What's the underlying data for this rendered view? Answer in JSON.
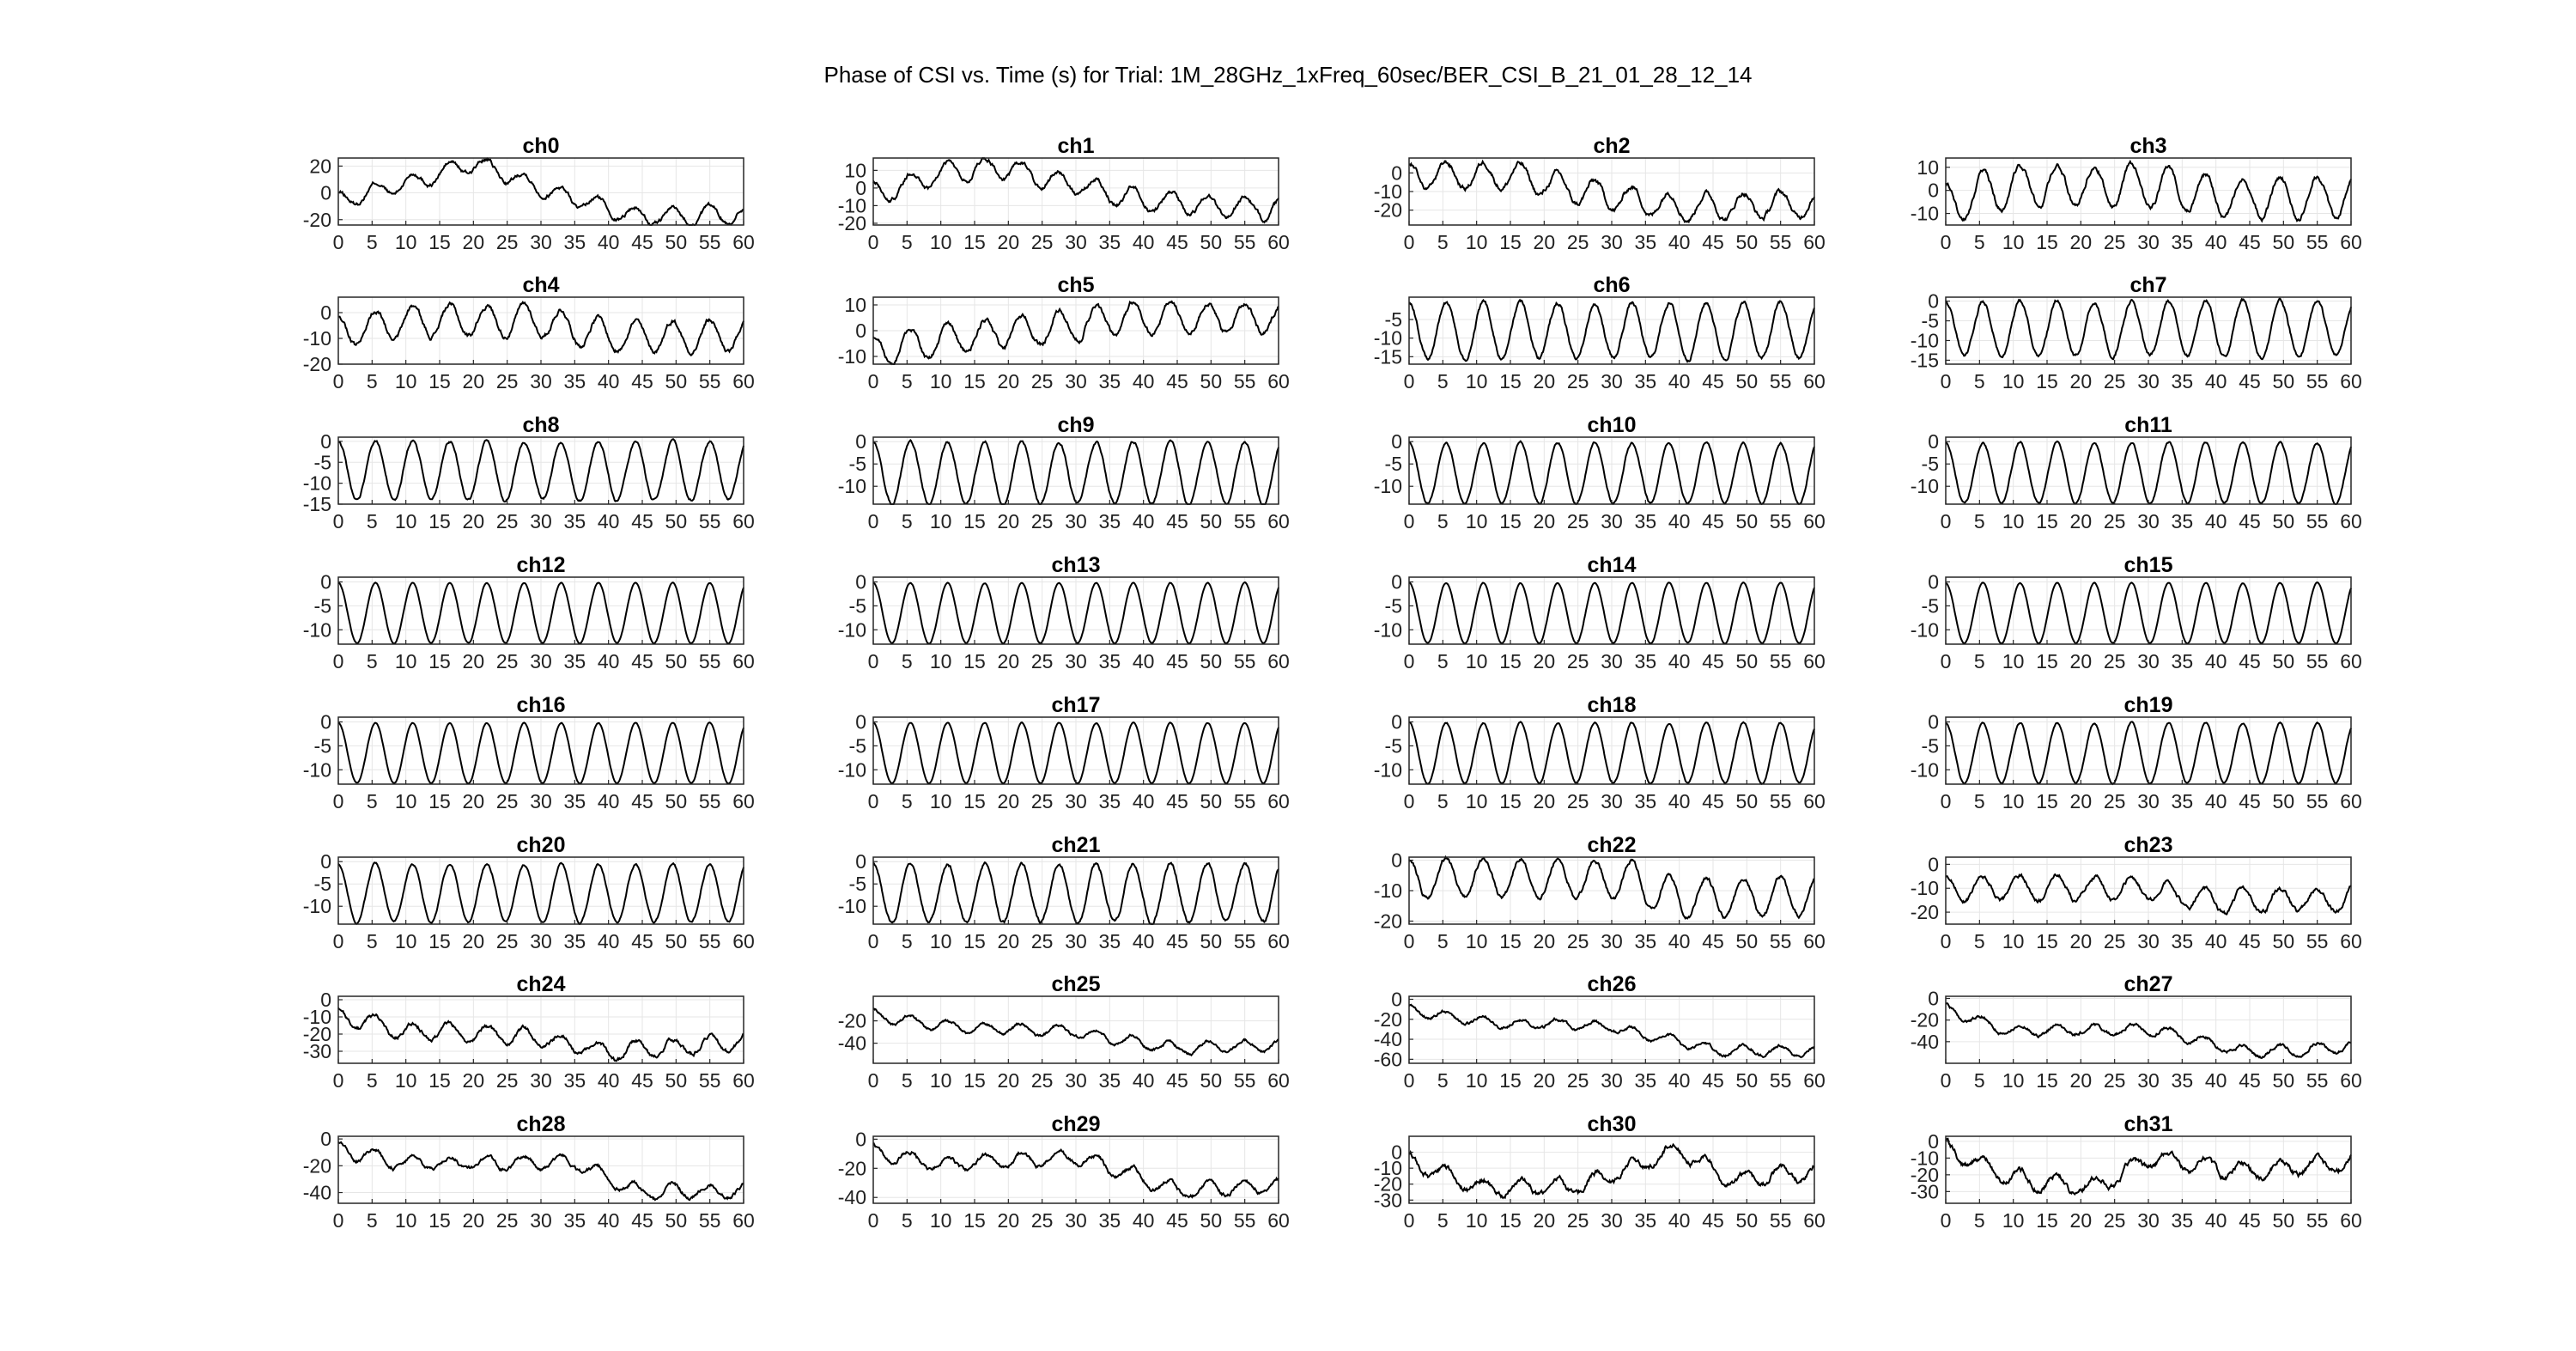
{
  "figure": {
    "title": "Phase of CSI vs. Time (s) for Trial: 1M_28GHz_1xFreq_60sec/BER_CSI_B_21_01_28_12_14"
  },
  "chart_data": {
    "type": "line",
    "layout": "8 rows x 4 columns small multiples",
    "xlim": [
      0,
      60
    ],
    "xticks": [
      0,
      5,
      10,
      15,
      20,
      25,
      30,
      35,
      40,
      45,
      50,
      55,
      60
    ],
    "grid": true,
    "line_color": "#000000",
    "series_model": "each channel oscillates with a period of about 5.5 s between ymin and ymax; a drift term shifts the baseline over time (values estimated from the figure)",
    "subplots": [
      {
        "title": "ch0",
        "ylim": [
          -24,
          26
        ],
        "yticks": [
          20,
          0,
          -20
        ],
        "amplitude": 6,
        "period": 5.5,
        "drift": [
          [
            0,
            -6
          ],
          [
            12,
            10
          ],
          [
            20,
            22
          ],
          [
            27,
            10
          ],
          [
            35,
            -5
          ],
          [
            45,
            -18
          ],
          [
            60,
            -16
          ]
        ],
        "noise": 2.0
      },
      {
        "title": "ch1",
        "ylim": [
          -21,
          17
        ],
        "yticks": [
          10,
          0,
          -10,
          -20
        ],
        "amplitude": 6,
        "period": 5.5,
        "drift": [
          [
            0,
            -4
          ],
          [
            10,
            8
          ],
          [
            18,
            12
          ],
          [
            30,
            2
          ],
          [
            40,
            -8
          ],
          [
            60,
            -12
          ]
        ],
        "noise": 1.6
      },
      {
        "title": "ch2",
        "ylim": [
          -28,
          8
        ],
        "yticks": [
          0,
          -10,
          -20
        ],
        "amplitude": 7,
        "period": 5.5,
        "drift": [
          [
            0,
            -2
          ],
          [
            15,
            -1
          ],
          [
            25,
            -10
          ],
          [
            40,
            -18
          ],
          [
            60,
            -17
          ]
        ],
        "noise": 1.8
      },
      {
        "title": "ch3",
        "ylim": [
          -15,
          14
        ],
        "yticks": [
          10,
          0,
          -10
        ],
        "amplitude": 9,
        "period": 5.5,
        "drift": [
          [
            0,
            -6
          ],
          [
            10,
            2
          ],
          [
            30,
            2
          ],
          [
            40,
            -3
          ],
          [
            60,
            -3
          ]
        ],
        "noise": 1.4
      },
      {
        "title": "ch4",
        "ylim": [
          -20,
          6
        ],
        "yticks": [
          0,
          -10,
          -20
        ],
        "amplitude": 6,
        "period": 5.5,
        "drift": [
          [
            0,
            -8
          ],
          [
            12,
            -3
          ],
          [
            30,
            -3
          ],
          [
            40,
            -9
          ],
          [
            60,
            -9
          ]
        ],
        "noise": 1.2
      },
      {
        "title": "ch5",
        "ylim": [
          -13,
          13
        ],
        "yticks": [
          10,
          0,
          -10
        ],
        "amplitude": 6,
        "period": 5.5,
        "drift": [
          [
            0,
            -8
          ],
          [
            15,
            -2
          ],
          [
            30,
            2
          ],
          [
            38,
            5
          ],
          [
            60,
            5
          ]
        ],
        "noise": 1.2
      },
      {
        "title": "ch6",
        "ylim": [
          -17,
          1
        ],
        "yticks": [
          -5,
          -10,
          -15
        ],
        "amplitude": 7.5,
        "period": 5.5,
        "drift": [
          [
            0,
            -8
          ],
          [
            60,
            -8
          ]
        ],
        "noise": 0.7
      },
      {
        "title": "ch7",
        "ylim": [
          -16,
          1
        ],
        "yticks": [
          0,
          -5,
          -10,
          -15
        ],
        "amplitude": 7,
        "period": 5.5,
        "drift": [
          [
            0,
            -7
          ],
          [
            60,
            -7
          ]
        ],
        "noise": 0.6
      },
      {
        "title": "ch8",
        "ylim": [
          -15,
          1
        ],
        "yticks": [
          0,
          -5,
          -10,
          -15
        ],
        "amplitude": 7,
        "period": 5.5,
        "drift": [
          [
            0,
            -7
          ],
          [
            60,
            -7
          ]
        ],
        "noise": 0.4
      },
      {
        "title": "ch9",
        "ylim": [
          -14,
          1
        ],
        "yticks": [
          0,
          -5,
          -10
        ],
        "amplitude": 7,
        "period": 5.5,
        "drift": [
          [
            0,
            -7
          ],
          [
            60,
            -7
          ]
        ],
        "noise": 0.4
      },
      {
        "title": "ch10",
        "ylim": [
          -14,
          1
        ],
        "yticks": [
          0,
          -5,
          -10
        ],
        "amplitude": 6.8,
        "period": 5.5,
        "drift": [
          [
            0,
            -7
          ],
          [
            60,
            -7
          ]
        ],
        "noise": 0.3
      },
      {
        "title": "ch11",
        "ylim": [
          -14,
          1
        ],
        "yticks": [
          0,
          -5,
          -10
        ],
        "amplitude": 6.8,
        "period": 5.5,
        "drift": [
          [
            0,
            -7
          ],
          [
            60,
            -7
          ]
        ],
        "noise": 0.3
      },
      {
        "title": "ch12",
        "ylim": [
          -13,
          1
        ],
        "yticks": [
          0,
          -5,
          -10
        ],
        "amplitude": 6.3,
        "period": 5.5,
        "drift": [
          [
            0,
            -6.5
          ],
          [
            60,
            -6.5
          ]
        ],
        "noise": 0.1
      },
      {
        "title": "ch13",
        "ylim": [
          -13,
          1
        ],
        "yticks": [
          0,
          -5,
          -10
        ],
        "amplitude": 6.3,
        "period": 5.5,
        "drift": [
          [
            0,
            -6.5
          ],
          [
            60,
            -6.5
          ]
        ],
        "noise": 0.1
      },
      {
        "title": "ch14",
        "ylim": [
          -13,
          1
        ],
        "yticks": [
          0,
          -5,
          -10
        ],
        "amplitude": 6.3,
        "period": 5.5,
        "drift": [
          [
            0,
            -6.5
          ],
          [
            60,
            -6.5
          ]
        ],
        "noise": 0.1
      },
      {
        "title": "ch15",
        "ylim": [
          -13,
          1
        ],
        "yticks": [
          0,
          -5,
          -10
        ],
        "amplitude": 6.3,
        "period": 5.5,
        "drift": [
          [
            0,
            -6.5
          ],
          [
            60,
            -6.5
          ]
        ],
        "noise": 0.1
      },
      {
        "title": "ch16",
        "ylim": [
          -13,
          1
        ],
        "yticks": [
          0,
          -5,
          -10
        ],
        "amplitude": 6.3,
        "period": 5.5,
        "drift": [
          [
            0,
            -6.5
          ],
          [
            60,
            -6.5
          ]
        ],
        "noise": 0.1
      },
      {
        "title": "ch17",
        "ylim": [
          -13,
          1
        ],
        "yticks": [
          0,
          -5,
          -10
        ],
        "amplitude": 6.3,
        "period": 5.5,
        "drift": [
          [
            0,
            -6.5
          ],
          [
            60,
            -6.5
          ]
        ],
        "noise": 0.1
      },
      {
        "title": "ch18",
        "ylim": [
          -13,
          1
        ],
        "yticks": [
          0,
          -5,
          -10
        ],
        "amplitude": 6.3,
        "period": 5.5,
        "drift": [
          [
            0,
            -6.5
          ],
          [
            60,
            -6.5
          ]
        ],
        "noise": 0.2
      },
      {
        "title": "ch19",
        "ylim": [
          -13,
          1
        ],
        "yticks": [
          0,
          -5,
          -10
        ],
        "amplitude": 6.3,
        "period": 5.5,
        "drift": [
          [
            0,
            -6.5
          ],
          [
            60,
            -6.5
          ]
        ],
        "noise": 0.2
      },
      {
        "title": "ch20",
        "ylim": [
          -14,
          1
        ],
        "yticks": [
          0,
          -5,
          -10
        ],
        "amplitude": 6.5,
        "period": 5.5,
        "drift": [
          [
            0,
            -7
          ],
          [
            60,
            -7
          ]
        ],
        "noise": 0.3
      },
      {
        "title": "ch21",
        "ylim": [
          -14,
          1
        ],
        "yticks": [
          0,
          -5,
          -10
        ],
        "amplitude": 6.5,
        "period": 5.5,
        "drift": [
          [
            0,
            -7
          ],
          [
            60,
            -7
          ]
        ],
        "noise": 0.5
      },
      {
        "title": "ch22",
        "ylim": [
          -21,
          1
        ],
        "yticks": [
          0,
          -10,
          -20
        ],
        "amplitude": 6.5,
        "period": 5.5,
        "drift": [
          [
            0,
            -6
          ],
          [
            33,
            -6
          ],
          [
            37,
            -12
          ],
          [
            60,
            -12
          ]
        ],
        "noise": 0.9
      },
      {
        "title": "ch23",
        "ylim": [
          -25,
          3
        ],
        "yticks": [
          0,
          -10,
          -20
        ],
        "amplitude": 5,
        "period": 5.5,
        "drift": [
          [
            0,
            -10
          ],
          [
            30,
            -10
          ],
          [
            40,
            -16
          ],
          [
            60,
            -14
          ]
        ],
        "noise": 1.2
      },
      {
        "title": "ch24",
        "ylim": [
          -37,
          2
        ],
        "yticks": [
          0,
          -10,
          -20,
          -30
        ],
        "amplitude": 5,
        "period": 5.5,
        "drift": [
          [
            0,
            -10
          ],
          [
            10,
            -18
          ],
          [
            30,
            -22
          ],
          [
            40,
            -30
          ],
          [
            60,
            -25
          ]
        ],
        "noise": 1.5
      },
      {
        "title": "ch25",
        "ylim": [
          -58,
          2
        ],
        "yticks": [
          -20,
          -40
        ],
        "amplitude": 5,
        "period": 5.5,
        "drift": [
          [
            0,
            -15
          ],
          [
            10,
            -25
          ],
          [
            30,
            -30
          ],
          [
            45,
            -45
          ],
          [
            60,
            -42
          ]
        ],
        "noise": 1.8
      },
      {
        "title": "ch26",
        "ylim": [
          -64,
          3
        ],
        "yticks": [
          0,
          -20,
          -40,
          -60
        ],
        "amplitude": 5,
        "period": 5.5,
        "drift": [
          [
            0,
            -10
          ],
          [
            10,
            -22
          ],
          [
            30,
            -28
          ],
          [
            45,
            -50
          ],
          [
            60,
            -52
          ]
        ],
        "noise": 2.0
      },
      {
        "title": "ch27",
        "ylim": [
          -60,
          2
        ],
        "yticks": [
          0,
          -20,
          -40
        ],
        "amplitude": 5,
        "period": 5.5,
        "drift": [
          [
            0,
            -10
          ],
          [
            10,
            -30
          ],
          [
            30,
            -28
          ],
          [
            45,
            -50
          ],
          [
            60,
            -44
          ]
        ],
        "noise": 2.0
      },
      {
        "title": "ch28",
        "ylim": [
          -48,
          2
        ],
        "yticks": [
          0,
          -20,
          -40
        ],
        "amplitude": 5,
        "period": 5.5,
        "drift": [
          [
            0,
            -8
          ],
          [
            10,
            -18
          ],
          [
            35,
            -18
          ],
          [
            45,
            -40
          ],
          [
            60,
            -38
          ]
        ],
        "noise": 1.8
      },
      {
        "title": "ch29",
        "ylim": [
          -44,
          2
        ],
        "yticks": [
          0,
          -20,
          -40
        ],
        "amplitude": 5,
        "period": 5.5,
        "drift": [
          [
            0,
            -8
          ],
          [
            10,
            -18
          ],
          [
            30,
            -12
          ],
          [
            45,
            -35
          ],
          [
            60,
            -32
          ]
        ],
        "noise": 1.8
      },
      {
        "title": "ch30",
        "ylim": [
          -32,
          10
        ],
        "yticks": [
          0,
          -10,
          -20,
          -30
        ],
        "amplitude": 5,
        "period": 5.5,
        "drift": [
          [
            0,
            -5
          ],
          [
            10,
            -22
          ],
          [
            25,
            -22
          ],
          [
            40,
            2
          ],
          [
            48,
            -18
          ],
          [
            60,
            -12
          ]
        ],
        "noise": 2.2
      },
      {
        "title": "ch31",
        "ylim": [
          -37,
          3
        ],
        "yticks": [
          0,
          -10,
          -20,
          -30
        ],
        "amplitude": 5,
        "period": 5.5,
        "drift": [
          [
            0,
            -5
          ],
          [
            10,
            -22
          ],
          [
            22,
            -28
          ],
          [
            30,
            -10
          ],
          [
            45,
            -18
          ],
          [
            60,
            -12
          ]
        ],
        "noise": 2.2
      }
    ]
  }
}
